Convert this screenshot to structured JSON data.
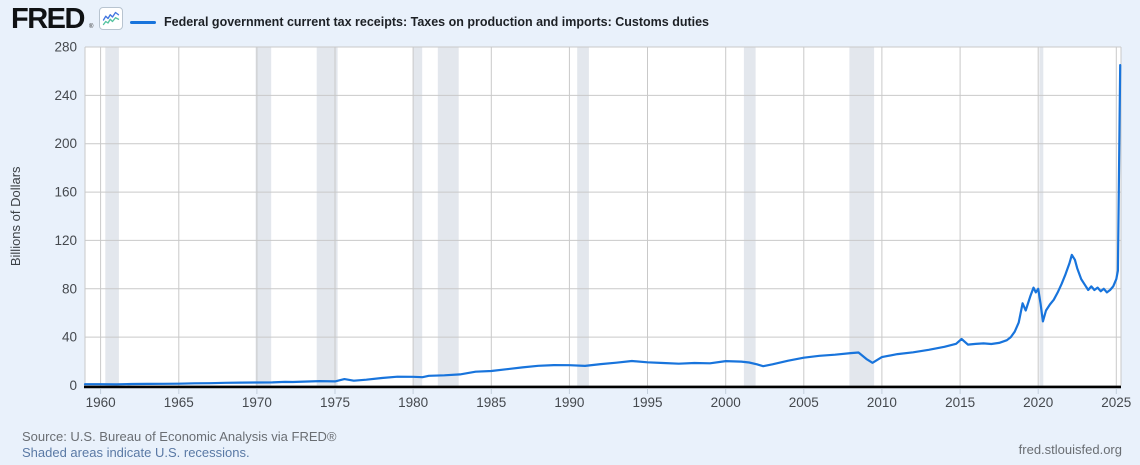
{
  "header": {
    "logo": "FRED",
    "registered": "®",
    "series_title": "Federal government current tax receipts: Taxes on production and imports: Customs duties"
  },
  "footer": {
    "source": "Source: U.S. Bureau of Economic Analysis via FRED®",
    "recessions_note": "Shaded areas indicate U.S. recessions.",
    "site": "fred.stlouisfed.org"
  },
  "colors": {
    "line_blue": "#1874dc",
    "recession_band": "#e3e7ed",
    "page_background": "#e9f1fb",
    "link_blue": "#5a79a5"
  },
  "chart_data": {
    "type": "line",
    "title": "Federal government current tax receipts: Taxes on production and imports: Customs duties",
    "xlabel": "",
    "ylabel": "Billions of Dollars",
    "ylim": [
      0,
      280
    ],
    "xlim": [
      1959,
      2025.3
    ],
    "yticks": [
      0,
      40,
      80,
      120,
      160,
      200,
      240,
      280
    ],
    "xticks": [
      1960,
      1965,
      1970,
      1975,
      1980,
      1985,
      1990,
      1995,
      2000,
      2005,
      2010,
      2015,
      2020,
      2025
    ],
    "grid": true,
    "legend_position": "top",
    "line_color": "#1874dc",
    "recession_band_color": "#e3e7ed",
    "recessions": [
      [
        1960.3,
        1961.17
      ],
      [
        1969.92,
        1970.92
      ],
      [
        1973.83,
        1975.17
      ],
      [
        1980.0,
        1980.58
      ],
      [
        1981.58,
        1982.92
      ],
      [
        1990.5,
        1991.25
      ],
      [
        2001.17,
        2001.92
      ],
      [
        2007.92,
        2009.5
      ],
      [
        2020.08,
        2020.33
      ]
    ],
    "series": [
      {
        "name": "Federal government current tax receipts: Taxes on production and imports: Customs duties",
        "units": "Billions of Dollars",
        "points": [
          [
            1959,
            1.1
          ],
          [
            1960,
            1.1
          ],
          [
            1961,
            1.0
          ],
          [
            1962,
            1.2
          ],
          [
            1963,
            1.3
          ],
          [
            1964,
            1.4
          ],
          [
            1965,
            1.5
          ],
          [
            1966,
            1.8
          ],
          [
            1967,
            1.9
          ],
          [
            1968,
            2.2
          ],
          [
            1969,
            2.4
          ],
          [
            1970,
            2.5
          ],
          [
            1971,
            2.6
          ],
          [
            1971.8,
            3.0
          ],
          [
            1972.3,
            2.9
          ],
          [
            1973,
            3.2
          ],
          [
            1974,
            3.6
          ],
          [
            1975,
            3.4
          ],
          [
            1975.6,
            5.3
          ],
          [
            1976.2,
            4.0
          ],
          [
            1977,
            4.8
          ],
          [
            1978,
            6.2
          ],
          [
            1979,
            7.3
          ],
          [
            1980,
            7.2
          ],
          [
            1980.6,
            6.9
          ],
          [
            1981,
            8.0
          ],
          [
            1982,
            8.4
          ],
          [
            1983,
            9.2
          ],
          [
            1984,
            11.4
          ],
          [
            1985,
            12.0
          ],
          [
            1986,
            13.5
          ],
          [
            1987,
            15.0
          ],
          [
            1988,
            16.3
          ],
          [
            1989,
            16.9
          ],
          [
            1990,
            16.8
          ],
          [
            1991,
            16.2
          ],
          [
            1992,
            17.7
          ],
          [
            1993,
            18.9
          ],
          [
            1994,
            20.3
          ],
          [
            1995,
            19.2
          ],
          [
            1996,
            18.6
          ],
          [
            1997,
            18.0
          ],
          [
            1998,
            18.6
          ],
          [
            1999,
            18.4
          ],
          [
            2000,
            20.2
          ],
          [
            2001,
            19.8
          ],
          [
            2001.5,
            19.0
          ],
          [
            2002,
            17.5
          ],
          [
            2002.4,
            16.0
          ],
          [
            2003,
            17.5
          ],
          [
            2004,
            20.5
          ],
          [
            2005,
            23.0
          ],
          [
            2006,
            24.6
          ],
          [
            2007,
            25.5
          ],
          [
            2008,
            26.8
          ],
          [
            2008.5,
            27.3
          ],
          [
            2009,
            22.0
          ],
          [
            2009.4,
            18.8
          ],
          [
            2010,
            23.5
          ],
          [
            2011,
            26.0
          ],
          [
            2012,
            27.5
          ],
          [
            2013,
            29.5
          ],
          [
            2014,
            32.0
          ],
          [
            2014.75,
            34.5
          ],
          [
            2015.1,
            38.5
          ],
          [
            2015.5,
            33.8
          ],
          [
            2016,
            34.4
          ],
          [
            2016.5,
            34.8
          ],
          [
            2017,
            34.3
          ],
          [
            2017.5,
            35.2
          ],
          [
            2018,
            37.5
          ],
          [
            2018.25,
            40
          ],
          [
            2018.5,
            44.5
          ],
          [
            2018.75,
            52
          ],
          [
            2019,
            68
          ],
          [
            2019.2,
            62
          ],
          [
            2019.5,
            74
          ],
          [
            2019.7,
            81
          ],
          [
            2019.85,
            77
          ],
          [
            2020,
            80
          ],
          [
            2020.15,
            68
          ],
          [
            2020.3,
            53
          ],
          [
            2020.5,
            62
          ],
          [
            2020.75,
            67
          ],
          [
            2021,
            71
          ],
          [
            2021.25,
            77
          ],
          [
            2021.5,
            84
          ],
          [
            2021.75,
            92
          ],
          [
            2022,
            101
          ],
          [
            2022.15,
            108
          ],
          [
            2022.35,
            104
          ],
          [
            2022.5,
            97
          ],
          [
            2022.75,
            88
          ],
          [
            2023,
            83
          ],
          [
            2023.2,
            79
          ],
          [
            2023.4,
            82
          ],
          [
            2023.6,
            79
          ],
          [
            2023.8,
            81
          ],
          [
            2024,
            78
          ],
          [
            2024.2,
            80
          ],
          [
            2024.4,
            77
          ],
          [
            2024.6,
            79
          ],
          [
            2024.8,
            82
          ],
          [
            2025,
            88
          ],
          [
            2025.1,
            95
          ],
          [
            2025.25,
            265
          ]
        ]
      }
    ]
  }
}
